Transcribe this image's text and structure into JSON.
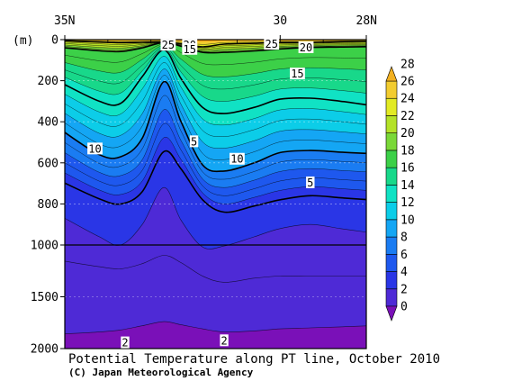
{
  "chart_data": {
    "type": "heatmap",
    "title": "Potential Temperature along PT line, October 2010",
    "credit": "(C) Japan Meteorological Agency",
    "y_unit_label": "(m)",
    "x_tick_labels": [
      "35N",
      "30",
      "28N"
    ],
    "x_ticks_lat": [
      35,
      30,
      28
    ],
    "x_range_lat": [
      35,
      28
    ],
    "y_tick_values": [
      0,
      200,
      400,
      600,
      800,
      1000,
      1500,
      2000
    ],
    "y_tick_labels": [
      "0",
      "200",
      "400",
      "600",
      "800",
      "1000",
      "1500",
      "2000"
    ],
    "y_range_depth": [
      0,
      2000
    ],
    "y_scale_note": "stretched: 0-1000 m upper panel, 1000-2000 m lower panel",
    "levels": [
      0,
      2,
      4,
      6,
      8,
      10,
      12,
      14,
      16,
      18,
      20,
      22,
      24,
      26,
      28
    ],
    "colorbar_labels": [
      "0",
      "2",
      "4",
      "6",
      "8",
      "10",
      "12",
      "14",
      "16",
      "18",
      "20",
      "22",
      "24",
      "26",
      "28"
    ],
    "level_colors": [
      "#7a10b8",
      "#4e2ad6",
      "#2a36e6",
      "#1e58ee",
      "#1a7cf2",
      "#14a6f4",
      "#0ccde8",
      "#10e2c4",
      "#18d88a",
      "#3cd048",
      "#7ad838",
      "#b4e228",
      "#e2ea24",
      "#f2cc30",
      "#f2b020"
    ],
    "profile_lats": [
      35.0,
      34.2,
      33.7,
      33.2,
      32.7,
      32.3,
      31.8,
      31.3,
      30.6,
      30.0,
      29.3,
      28.6,
      28.0
    ],
    "isotherm_depths": [
      {
        "temp": 25,
        "depths": [
          5,
          12,
          15,
          13,
          12,
          20,
          35,
          22,
          18,
          14,
          14,
          10,
          8
        ]
      },
      {
        "temp": 20,
        "depths": [
          38,
          54,
          58,
          40,
          14,
          32,
          62,
          62,
          55,
          45,
          38,
          36,
          34
        ]
      },
      {
        "temp": 15,
        "depths": [
          210,
          300,
          310,
          180,
          50,
          190,
          330,
          360,
          330,
          290,
          285,
          300,
          320
        ]
      },
      {
        "temp": 10,
        "depths": [
          440,
          560,
          570,
          480,
          205,
          400,
          610,
          640,
          600,
          550,
          540,
          548,
          555
        ]
      },
      {
        "temp": 5,
        "depths": [
          690,
          775,
          800,
          740,
          545,
          630,
          780,
          840,
          810,
          780,
          760,
          770,
          780
        ]
      },
      {
        "temp": 4,
        "depths": [
          860,
          960,
          1000,
          900,
          720,
          880,
          1020,
          1010,
          960,
          920,
          900,
          920,
          940
        ]
      },
      {
        "temp": 3,
        "depths": [
          1150,
          1210,
          1230,
          1180,
          1100,
          1170,
          1300,
          1360,
          1320,
          1300,
          1300,
          1300,
          1300
        ]
      },
      {
        "temp": 2,
        "depths": [
          1860,
          1840,
          1820,
          1780,
          1740,
          1770,
          1810,
          1840,
          1830,
          1810,
          1800,
          1790,
          1780
        ]
      }
    ],
    "contour_labels": [
      {
        "text": "25",
        "lat": 32.6,
        "depth": 25
      },
      {
        "text": "20",
        "lat": 32.1,
        "depth": 25
      },
      {
        "text": "15",
        "lat": 32.1,
        "depth": 45
      },
      {
        "text": "25",
        "lat": 30.2,
        "depth": 20
      },
      {
        "text": "20",
        "lat": 29.4,
        "depth": 37
      },
      {
        "text": "15",
        "lat": 29.6,
        "depth": 165
      },
      {
        "text": "10",
        "lat": 34.3,
        "depth": 530
      },
      {
        "text": "5",
        "lat": 32.0,
        "depth": 495
      },
      {
        "text": "10",
        "lat": 31.0,
        "depth": 580
      },
      {
        "text": "5",
        "lat": 29.3,
        "depth": 695
      },
      {
        "text": "2",
        "lat": 33.6,
        "depth": 1940
      },
      {
        "text": "2",
        "lat": 31.3,
        "depth": 1920
      }
    ]
  }
}
